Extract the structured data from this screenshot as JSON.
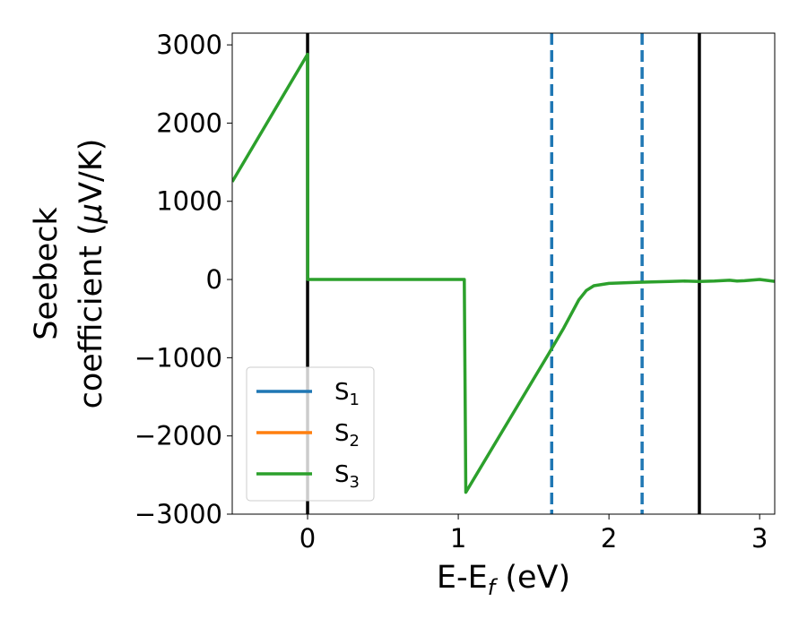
{
  "chart_data": {
    "type": "line",
    "title": "",
    "xlabel": {
      "base": "E-E",
      "sub": "f",
      "rest": " (eV)"
    },
    "ylabel": {
      "line1": "Seebeck",
      "line2_pre": "coefficient  (",
      "mu": "μ",
      "line2_post": "V/K)"
    },
    "xlim": [
      -0.5,
      3.1
    ],
    "ylim": [
      -3000,
      3150
    ],
    "xticks": [
      0,
      1,
      2,
      3
    ],
    "xtick_labels": [
      "0",
      "1",
      "2",
      "3"
    ],
    "yticks": [
      -3000,
      -2000,
      -1000,
      0,
      1000,
      2000,
      3000
    ],
    "ytick_labels": [
      "−3000",
      "−2000",
      "−1000",
      "0",
      "1000",
      "2000",
      "3000"
    ],
    "grid": false,
    "legend_position": "lower-left",
    "series": [
      {
        "name": "S",
        "sub": "1",
        "color": "#1f77b4",
        "x": [],
        "y": []
      },
      {
        "name": "S",
        "sub": "2",
        "color": "#ff7f0e",
        "x": [],
        "y": []
      },
      {
        "name": "S",
        "sub": "3",
        "color": "#2ca02c",
        "x": [
          -0.5,
          0.0,
          0.001,
          1.04,
          1.05,
          1.6,
          1.7,
          1.8,
          1.85,
          1.9,
          2.0,
          2.2,
          2.4,
          2.5,
          2.6,
          2.7,
          2.8,
          2.85,
          2.9,
          3.0,
          3.1
        ],
        "y": [
          1250,
          2880,
          0,
          0,
          -2720,
          -950,
          -620,
          -260,
          -140,
          -80,
          -50,
          -35,
          -25,
          -20,
          -25,
          -20,
          -10,
          -20,
          -15,
          0,
          -25
        ]
      }
    ],
    "vlines": [
      {
        "x": 0.0,
        "style": "solid",
        "color": "#000000"
      },
      {
        "x": 1.62,
        "style": "dashed",
        "color": "#1f77b4"
      },
      {
        "x": 2.22,
        "style": "dashed",
        "color": "#1f77b4"
      },
      {
        "x": 2.6,
        "style": "solid",
        "color": "#000000"
      }
    ]
  }
}
